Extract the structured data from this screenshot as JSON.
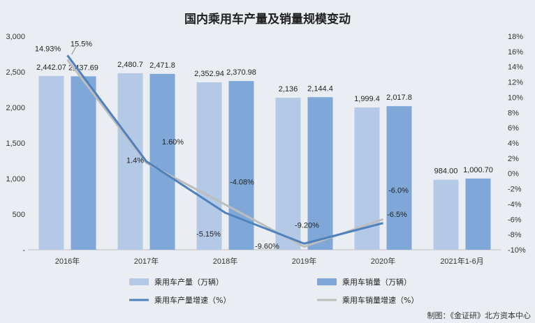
{
  "chart_data": {
    "type": "bar",
    "title": "国内乘用车产量及销量规模变动",
    "categories": [
      "2016年",
      "2017年",
      "2018年",
      "2019年",
      "2020年",
      "2021年1-6月"
    ],
    "left_axis": {
      "ylim": [
        0,
        3000
      ],
      "ticks": [
        "-",
        "500",
        "1,000",
        "1,500",
        "2,000",
        "2,500",
        "3,000"
      ],
      "tick_values": [
        0,
        500,
        1000,
        1500,
        2000,
        2500,
        3000
      ]
    },
    "right_axis": {
      "ylim": [
        -10,
        18
      ],
      "ticks": [
        "-10%",
        "-8%",
        "-6%",
        "-4%",
        "-2%",
        "0%",
        "2%",
        "4%",
        "6%",
        "8%",
        "10%",
        "12%",
        "14%",
        "16%",
        "18%"
      ],
      "tick_values": [
        -10,
        -8,
        -6,
        -4,
        -2,
        0,
        2,
        4,
        6,
        8,
        10,
        12,
        14,
        16,
        18
      ]
    },
    "bar_series": [
      {
        "name": "乘用车产量（万辆）",
        "color": "#b4c9e6",
        "values": [
          2442.07,
          2480.7,
          2352.94,
          2136,
          1999.4,
          984.0
        ],
        "labels": [
          "2,442.07",
          "2,480.7",
          "2,352.94",
          "2,136",
          "1,999.4",
          "984.00"
        ]
      },
      {
        "name": "乘用车销量（万辆）",
        "color": "#7fa8d8",
        "values": [
          2437.69,
          2471.8,
          2370.98,
          2144.4,
          2017.8,
          1000.7
        ],
        "labels": [
          "2,437.69",
          "2,471.8",
          "2,370.98",
          "2,144.4",
          "2,017.8",
          "1,000.70"
        ]
      }
    ],
    "line_series": [
      {
        "name": "乘用车产量增速（%）",
        "color": "#4f81bd",
        "values": [
          15.5,
          1.6,
          -5.15,
          -9.2,
          -6.5
        ],
        "labels": [
          "15.5%",
          "1.60%",
          "-5.15%",
          "-9.20%",
          "-6.5%"
        ]
      },
      {
        "name": "乘用车销量增速（%）",
        "color": "#bdbdbd",
        "values": [
          14.93,
          1.4,
          -4.08,
          -9.6,
          -6.0
        ],
        "labels": [
          "14.93%",
          "1.4%",
          "-4.08%",
          "-9.60%",
          "-6.0%"
        ]
      }
    ],
    "legend_position": "bottom",
    "grid": false
  },
  "source": "制图：《金证研》北方资本中心"
}
